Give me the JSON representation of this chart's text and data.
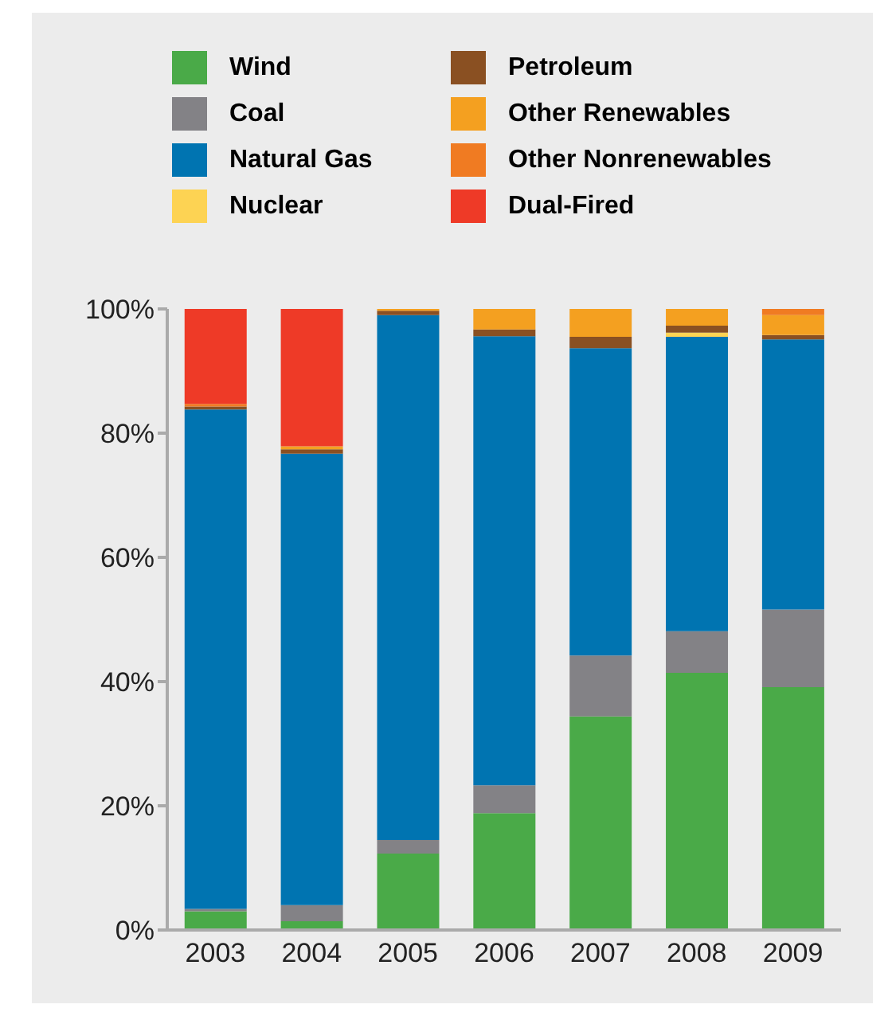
{
  "chart_data": {
    "type": "bar",
    "stacked": true,
    "categories": [
      "2003",
      "2004",
      "2005",
      "2006",
      "2007",
      "2008",
      "2009"
    ],
    "series": [
      {
        "name": "Wind",
        "color": "#4aaa48",
        "values": [
          3.0,
          1.4,
          12.3,
          18.8,
          34.4,
          41.4,
          39.1
        ]
      },
      {
        "name": "Coal",
        "color": "#838286",
        "values": [
          0.4,
          2.6,
          2.2,
          4.5,
          9.8,
          6.7,
          12.5
        ]
      },
      {
        "name": "Natural Gas",
        "color": "#0074b1",
        "values": [
          80.4,
          72.7,
          84.5,
          72.3,
          49.5,
          47.4,
          43.5
        ]
      },
      {
        "name": "Nuclear",
        "color": "#fdd353",
        "values": [
          0,
          0,
          0,
          0,
          0,
          0.7,
          0
        ]
      },
      {
        "name": "Petroleum",
        "color": "#8a5022",
        "values": [
          0.5,
          0.7,
          0.7,
          1.1,
          1.8,
          1.1,
          0.7
        ]
      },
      {
        "name": "Other Renewables",
        "color": "#f4a020",
        "values": [
          0,
          0.5,
          0.3,
          3.3,
          4.5,
          2.7,
          3.2
        ]
      },
      {
        "name": "Other Nonrenewables",
        "color": "#f07b22",
        "values": [
          0.4,
          0,
          0,
          0,
          0,
          0,
          1.0
        ]
      },
      {
        "name": "Dual-Fired",
        "color": "#ee3a27",
        "values": [
          15.3,
          22.1,
          0,
          0,
          0,
          0,
          0
        ]
      }
    ],
    "ylim": [
      0,
      100
    ],
    "yticks": [
      {
        "value": 0,
        "label": "0%"
      },
      {
        "value": 20,
        "label": "20%"
      },
      {
        "value": 40,
        "label": "40%"
      },
      {
        "value": 60,
        "label": "60%"
      },
      {
        "value": 80,
        "label": "80%"
      },
      {
        "value": 100,
        "label": "100%"
      }
    ],
    "legend": "top",
    "grid": false
  }
}
